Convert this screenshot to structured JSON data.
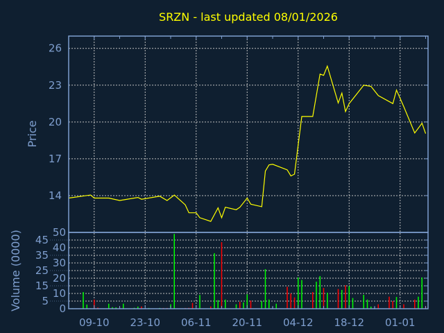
{
  "chart_data": [
    {
      "type": "line",
      "title": "SRZN - last updated 08/01/2026",
      "ylabel": "Price",
      "ylim": [
        11,
        27
      ],
      "yticks": [
        14,
        17,
        20,
        23,
        26
      ],
      "xlim": [
        "2025-10-02",
        "2026-01-08"
      ],
      "grid": true,
      "colors": {
        "background": "#0f1f30",
        "axis": "#7f9fcf",
        "line": "#ffff00",
        "grid": "#c0c0c0",
        "title": "#ffff00"
      },
      "x": [
        "2025-10-02",
        "2025-10-08",
        "2025-10-09",
        "2025-10-13",
        "2025-10-16",
        "2025-10-21",
        "2025-10-22",
        "2025-10-27",
        "2025-10-29",
        "2025-10-31",
        "2025-11-03",
        "2025-11-04",
        "2025-11-06",
        "2025-11-07",
        "2025-11-10",
        "2025-11-12",
        "2025-11-13",
        "2025-11-14",
        "2025-11-17",
        "2025-11-18",
        "2025-11-20",
        "2025-11-21",
        "2025-11-24",
        "2025-11-25",
        "2025-11-26",
        "2025-11-27",
        "2025-12-01",
        "2025-12-02",
        "2025-12-03",
        "2025-12-05",
        "2025-12-08",
        "2025-12-10",
        "2025-12-11",
        "2025-12-12",
        "2025-12-15",
        "2025-12-16",
        "2025-12-17",
        "2025-12-18",
        "2025-12-22",
        "2025-12-24",
        "2025-12-26",
        "2025-12-30",
        "2025-12-31",
        "2026-01-02",
        "2026-01-05",
        "2026-01-07",
        "2026-01-08"
      ],
      "values": [
        13.8,
        14.05,
        13.8,
        13.8,
        13.6,
        13.85,
        13.7,
        13.95,
        13.6,
        14.05,
        13.25,
        12.6,
        12.6,
        12.2,
        11.9,
        13.0,
        12.2,
        13.05,
        12.85,
        13.05,
        13.8,
        13.3,
        13.1,
        16.0,
        16.5,
        16.55,
        16.1,
        15.6,
        15.75,
        20.45,
        20.45,
        23.9,
        23.8,
        24.55,
        21.55,
        22.35,
        20.85,
        21.5,
        23.0,
        22.9,
        22.15,
        21.5,
        22.6,
        21.25,
        19.1,
        19.9,
        19.05
      ]
    },
    {
      "type": "bar",
      "ylabel": "Volume (0000)",
      "ylim": [
        0,
        50
      ],
      "yticks": [
        0,
        5,
        10,
        15,
        20,
        25,
        30,
        35,
        40,
        45,
        50
      ],
      "xlim": [
        "2025-10-02",
        "2026-01-08"
      ],
      "xticks": [
        "09-10",
        "23-10",
        "06-11",
        "20-11",
        "04-12",
        "18-12",
        "01-01"
      ],
      "xtick_dates": [
        "2025-10-09",
        "2025-10-23",
        "2025-11-06",
        "2025-11-20",
        "2025-12-04",
        "2025-12-18",
        "2026-01-01"
      ],
      "grid": true,
      "colors": {
        "up": "#00ff00",
        "down": "#ff0000",
        "flat": "#8090b0"
      },
      "bars": [
        [
          "2025-10-03",
          0.3,
          "up"
        ],
        [
          "2025-10-06",
          10.9,
          "up"
        ],
        [
          "2025-10-07",
          2.7,
          "up"
        ],
        [
          "2025-10-08",
          0.3,
          "up"
        ],
        [
          "2025-10-09",
          6,
          "down"
        ],
        [
          "2025-10-10",
          0.8,
          "down"
        ],
        [
          "2025-10-13",
          3.3,
          "up"
        ],
        [
          "2025-10-14",
          1,
          "up"
        ],
        [
          "2025-10-15",
          0.9,
          "up"
        ],
        [
          "2025-10-16",
          0.8,
          "down"
        ],
        [
          "2025-10-17",
          3.3,
          "up"
        ],
        [
          "2025-10-20",
          0.6,
          "up"
        ],
        [
          "2025-10-21",
          1.4,
          "up"
        ],
        [
          "2025-10-22",
          1.5,
          "down"
        ],
        [
          "2025-10-24",
          0.5,
          "up"
        ],
        [
          "2025-10-27",
          0.5,
          "up"
        ],
        [
          "2025-10-28",
          0.5,
          "down"
        ],
        [
          "2025-10-29",
          0.5,
          "down"
        ],
        [
          "2025-10-30",
          2.9,
          "up"
        ],
        [
          "2025-10-31",
          49,
          "up"
        ],
        [
          "2025-11-03",
          0.5,
          "down"
        ],
        [
          "2025-11-04",
          0.6,
          "down"
        ],
        [
          "2025-11-05",
          3.8,
          "down"
        ],
        [
          "2025-11-07",
          9,
          "up"
        ],
        [
          "2025-11-10",
          1.5,
          "down"
        ],
        [
          "2025-11-11",
          36.4,
          "up"
        ],
        [
          "2025-11-12",
          5.6,
          "up"
        ],
        [
          "2025-11-13",
          43.6,
          "down"
        ],
        [
          "2025-11-14",
          6,
          "up"
        ],
        [
          "2025-11-17",
          2.9,
          "up"
        ],
        [
          "2025-11-18",
          4.5,
          "down"
        ],
        [
          "2025-11-19",
          4.1,
          "up"
        ],
        [
          "2025-11-20",
          9.4,
          "up"
        ],
        [
          "2025-11-21",
          5.3,
          "down"
        ],
        [
          "2025-11-24",
          5,
          "up"
        ],
        [
          "2025-11-25",
          25.9,
          "up"
        ],
        [
          "2025-11-26",
          6,
          "up"
        ],
        [
          "2025-11-27",
          0.8,
          "flat"
        ],
        [
          "2025-11-28",
          3.3,
          "up"
        ],
        [
          "2025-12-01",
          14.4,
          "down"
        ],
        [
          "2025-12-02",
          10,
          "down"
        ],
        [
          "2025-12-03",
          7.4,
          "down"
        ],
        [
          "2025-12-04",
          20.5,
          "up"
        ],
        [
          "2025-12-05",
          18.8,
          "up"
        ],
        [
          "2025-12-08",
          10.9,
          "down"
        ],
        [
          "2025-12-09",
          17.7,
          "up"
        ],
        [
          "2025-12-10",
          21.4,
          "up"
        ],
        [
          "2025-12-11",
          13.6,
          "down"
        ],
        [
          "2025-12-12",
          10.5,
          "up"
        ],
        [
          "2025-12-15",
          12.9,
          "down"
        ],
        [
          "2025-12-16",
          12.3,
          "up"
        ],
        [
          "2025-12-17",
          15.3,
          "down"
        ],
        [
          "2025-12-18",
          14.8,
          "up"
        ],
        [
          "2025-12-19",
          7,
          "up"
        ],
        [
          "2025-12-22",
          9.1,
          "up"
        ],
        [
          "2025-12-23",
          6,
          "up"
        ],
        [
          "2025-12-24",
          1.4,
          "up"
        ],
        [
          "2025-12-25",
          0.8,
          "flat"
        ],
        [
          "2025-12-26",
          2.9,
          "down"
        ],
        [
          "2025-12-29",
          7.9,
          "down"
        ],
        [
          "2025-12-30",
          5,
          "down"
        ],
        [
          "2025-12-31",
          7.7,
          "up"
        ],
        [
          "2026-01-02",
          2.9,
          "down"
        ],
        [
          "2026-01-05",
          6,
          "down"
        ],
        [
          "2026-01-06",
          7.9,
          "up"
        ],
        [
          "2026-01-07",
          20.5,
          "up"
        ],
        [
          "2026-01-08",
          1.4,
          "down"
        ]
      ]
    }
  ]
}
